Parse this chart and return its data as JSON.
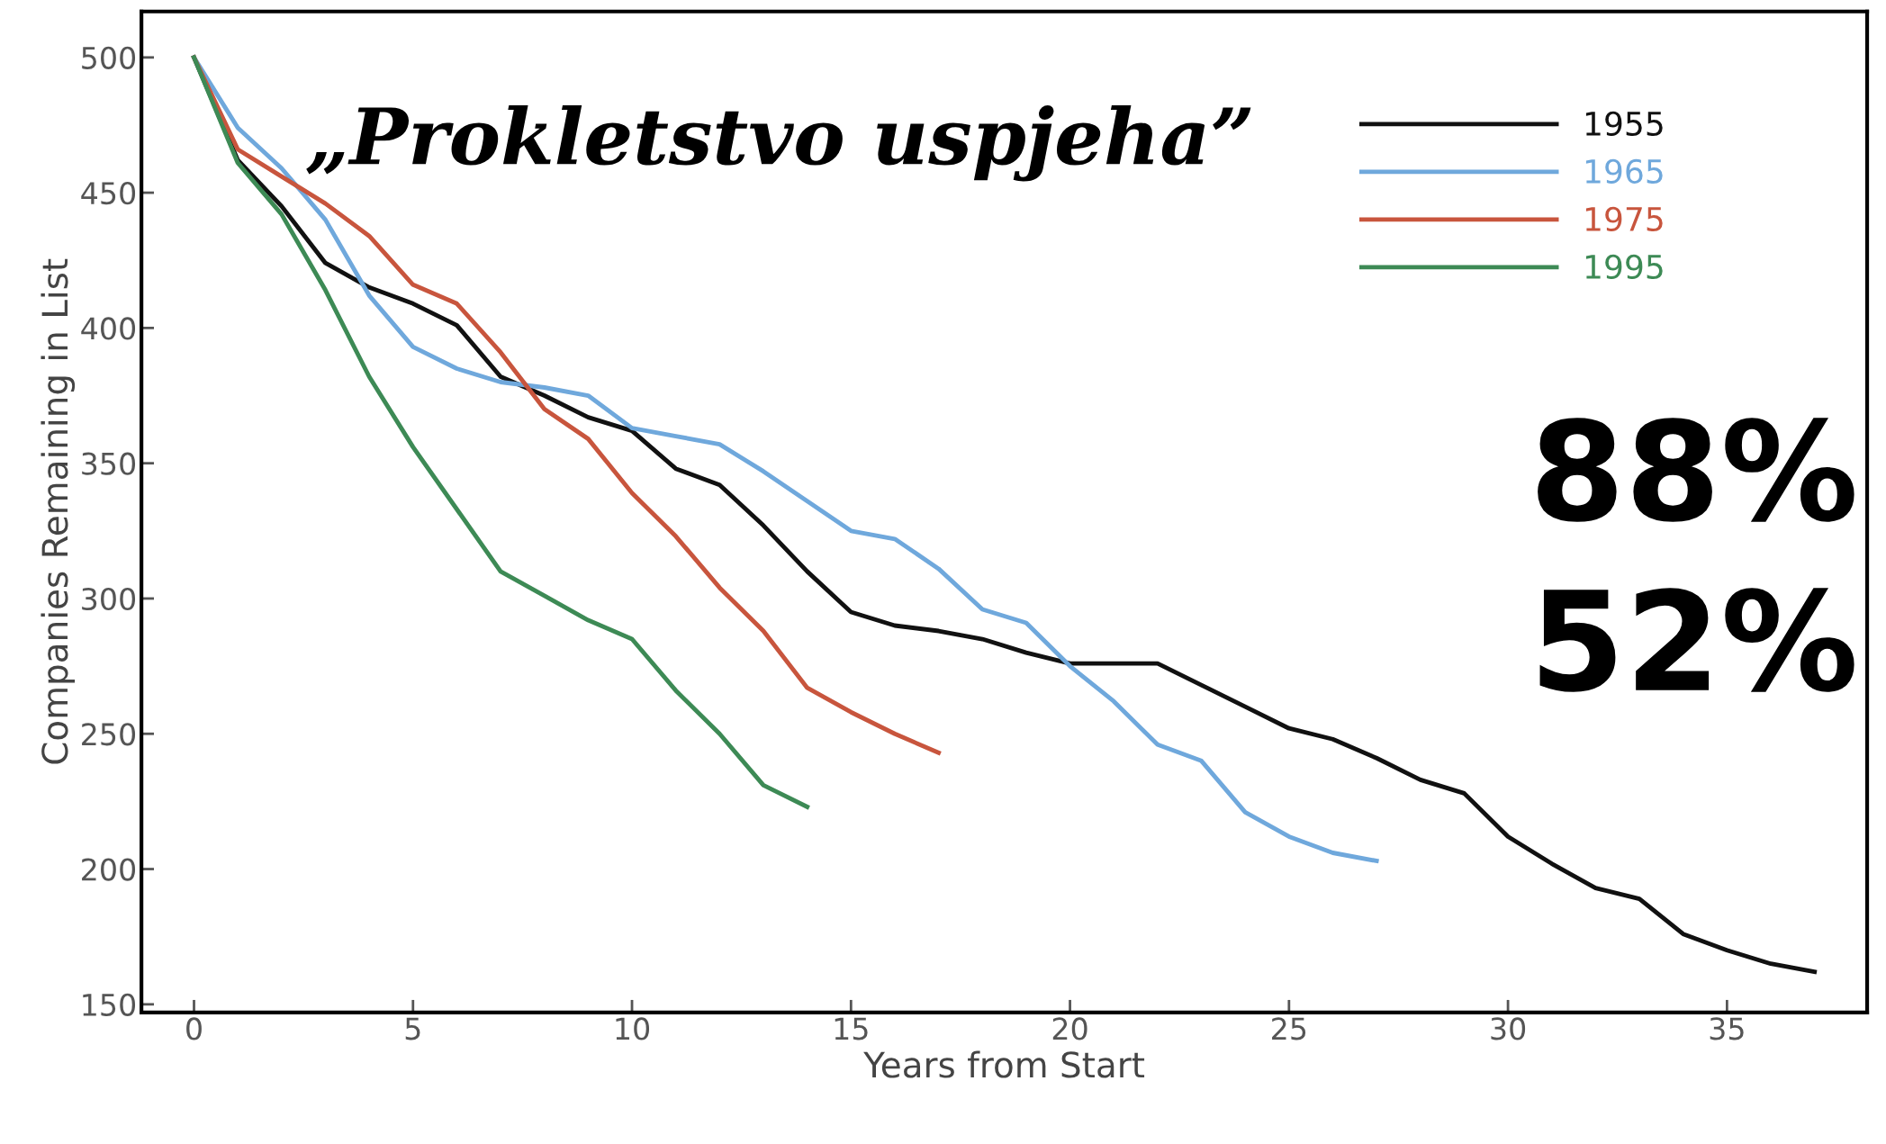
{
  "chart_data": {
    "type": "line",
    "title": "„Prokletstvo uspjeha”",
    "xlabel": "Years from Start",
    "ylabel": "Companies Remaining in List",
    "xlim": [
      -1.2,
      38.2
    ],
    "ylim": [
      147,
      517
    ],
    "xticks": [
      0,
      5,
      10,
      15,
      20,
      25,
      30,
      35
    ],
    "yticks": [
      150,
      200,
      250,
      300,
      350,
      400,
      450,
      500
    ],
    "grid": false,
    "legend": "top right",
    "marker": "none",
    "line_style": "solid",
    "annotations": [
      "88%",
      "52%"
    ],
    "series": [
      {
        "name": "1955",
        "color": "#111111",
        "x": [
          0,
          1,
          2,
          3,
          4,
          5,
          6,
          7,
          8,
          9,
          10,
          11,
          12,
          13,
          14,
          15,
          16,
          17,
          18,
          19,
          20,
          21,
          22,
          23,
          24,
          25,
          26,
          27,
          28,
          29,
          30,
          31,
          32,
          33,
          34,
          35,
          36,
          37
        ],
        "values": [
          500,
          462,
          445,
          424,
          415,
          409,
          401,
          382,
          375,
          367,
          362,
          348,
          342,
          327,
          310,
          295,
          290,
          288,
          285,
          280,
          276,
          276,
          276,
          268,
          260,
          252,
          248,
          241,
          233,
          228,
          212,
          202,
          193,
          189,
          176,
          170,
          165,
          162
        ]
      },
      {
        "name": "1965",
        "color": "#6fa8dc",
        "x": [
          0,
          1,
          2,
          3,
          4,
          5,
          6,
          7,
          8,
          9,
          10,
          11,
          12,
          13,
          14,
          15,
          16,
          17,
          18,
          19,
          20,
          21,
          22,
          23,
          24,
          25,
          26,
          27
        ],
        "values": [
          500,
          474,
          459,
          440,
          412,
          393,
          385,
          380,
          378,
          375,
          363,
          360,
          357,
          347,
          336,
          325,
          322,
          311,
          296,
          291,
          275,
          262,
          246,
          240,
          221,
          212,
          206,
          203
        ]
      },
      {
        "name": "1975",
        "color": "#c8553d",
        "x": [
          0,
          1,
          2,
          3,
          4,
          5,
          6,
          7,
          8,
          9,
          10,
          11,
          12,
          13,
          14,
          15,
          16,
          17
        ],
        "values": [
          500,
          466,
          456,
          446,
          434,
          416,
          409,
          391,
          370,
          359,
          339,
          323,
          304,
          288,
          267,
          258,
          250,
          243
        ]
      },
      {
        "name": "1995",
        "color": "#3d8a55",
        "x": [
          0,
          1,
          2,
          3,
          4,
          5,
          6,
          7,
          8,
          9,
          10,
          11,
          12,
          13,
          14
        ],
        "values": [
          500,
          461,
          442,
          414,
          382,
          356,
          333,
          310,
          301,
          292,
          285,
          266,
          250,
          231,
          223
        ]
      }
    ]
  }
}
